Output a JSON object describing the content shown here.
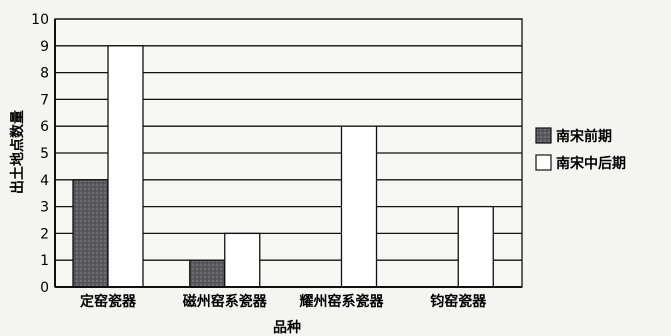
{
  "chart_data": {
    "type": "bar",
    "title": "",
    "xlabel": "品种",
    "ylabel": "出土地点数量",
    "categories": [
      "定窑瓷器",
      "磁州窑系瓷器",
      "耀州窑系瓷器",
      "钧窑瓷器"
    ],
    "series": [
      {
        "name": "南宋前期",
        "values": [
          4,
          1,
          0,
          0
        ],
        "color": "#5e5e62",
        "pattern": "dotted-dark"
      },
      {
        "name": "南宋中后期",
        "values": [
          9,
          2,
          6,
          3
        ],
        "color": "#ffffff",
        "pattern": "none"
      }
    ],
    "ylim": [
      0,
      10
    ],
    "yticks": [
      0,
      1,
      2,
      3,
      4,
      5,
      6,
      7,
      8,
      9,
      10
    ],
    "grid": "horizontal",
    "legend": "right"
  }
}
